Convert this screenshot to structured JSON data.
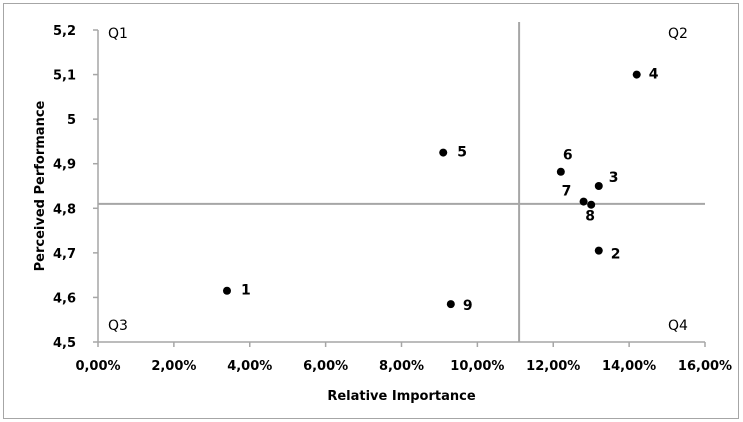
{
  "chart_data": {
    "type": "scatter",
    "title": "",
    "xlabel": "Relative Importance",
    "ylabel": "Perceived Performance",
    "xlim": [
      0.0,
      16.0
    ],
    "ylim": [
      4.5,
      5.2
    ],
    "x_ticks": [
      "0,00%",
      "2,00%",
      "4,00%",
      "6,00%",
      "8,00%",
      "10,00%",
      "12,00%",
      "14,00%",
      "16,00%"
    ],
    "y_ticks": [
      "4,5",
      "4,6",
      "4,7",
      "4,8",
      "4,9",
      "5",
      "5,1",
      "5,2"
    ],
    "grid": false,
    "points": [
      {
        "label": "1",
        "x": 3.4,
        "y": 4.615
      },
      {
        "label": "2",
        "x": 13.2,
        "y": 4.705
      },
      {
        "label": "3",
        "x": 13.2,
        "y": 4.85
      },
      {
        "label": "4",
        "x": 14.2,
        "y": 5.1
      },
      {
        "label": "5",
        "x": 9.1,
        "y": 4.925
      },
      {
        "label": "6",
        "x": 12.2,
        "y": 4.882
      },
      {
        "label": "7",
        "x": 12.8,
        "y": 4.815
      },
      {
        "label": "8",
        "x": 13.0,
        "y": 4.808
      },
      {
        "label": "9",
        "x": 9.3,
        "y": 4.585
      }
    ],
    "reference_lines": {
      "x": 11.1,
      "y": 4.81
    },
    "quadrants": [
      "Q1",
      "Q2",
      "Q3",
      "Q4"
    ],
    "colors": {
      "point": "#000000",
      "reference_line": "#a6a6a6",
      "axis": "#a6a6a6"
    }
  }
}
